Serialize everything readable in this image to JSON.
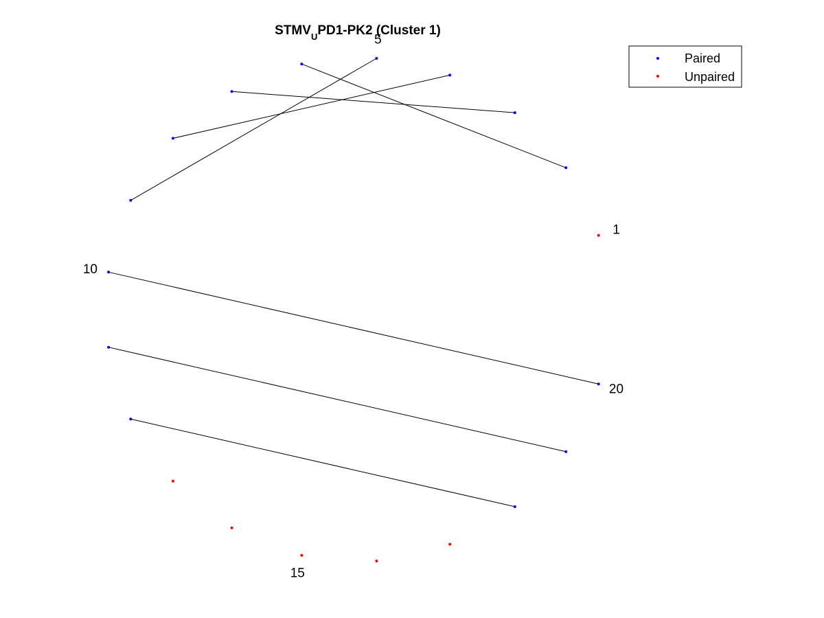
{
  "chart_data": {
    "type": "circular-arc-diagram",
    "title": {
      "main": "STMV",
      "subscript": "U",
      "rest": "PD1-PK2 (Cluster 1)"
    },
    "node_count": 20,
    "labeled_nodes": [
      {
        "index": 1,
        "text": "1"
      },
      {
        "index": 5,
        "text": "5"
      },
      {
        "index": 10,
        "text": "10"
      },
      {
        "index": 15,
        "text": "15"
      },
      {
        "index": 20,
        "text": "20"
      }
    ],
    "pairs": [
      [
        2,
        6
      ],
      [
        3,
        7
      ],
      [
        4,
        8
      ],
      [
        5,
        9
      ],
      [
        10,
        20
      ],
      [
        11,
        19
      ],
      [
        12,
        18
      ]
    ],
    "series": [
      {
        "name": "Paired",
        "color": "#0000ff",
        "nodes": [
          2,
          3,
          4,
          5,
          6,
          7,
          8,
          9,
          10,
          11,
          12,
          18,
          19,
          20
        ]
      },
      {
        "name": "Unpaired",
        "color": "#ff0000",
        "nodes": [
          1,
          13,
          14,
          15,
          16,
          17
        ]
      }
    ],
    "legend": {
      "position": "top-right",
      "entries": [
        "Paired",
        "Unpaired"
      ]
    },
    "grid": false,
    "axes_visible": false
  }
}
